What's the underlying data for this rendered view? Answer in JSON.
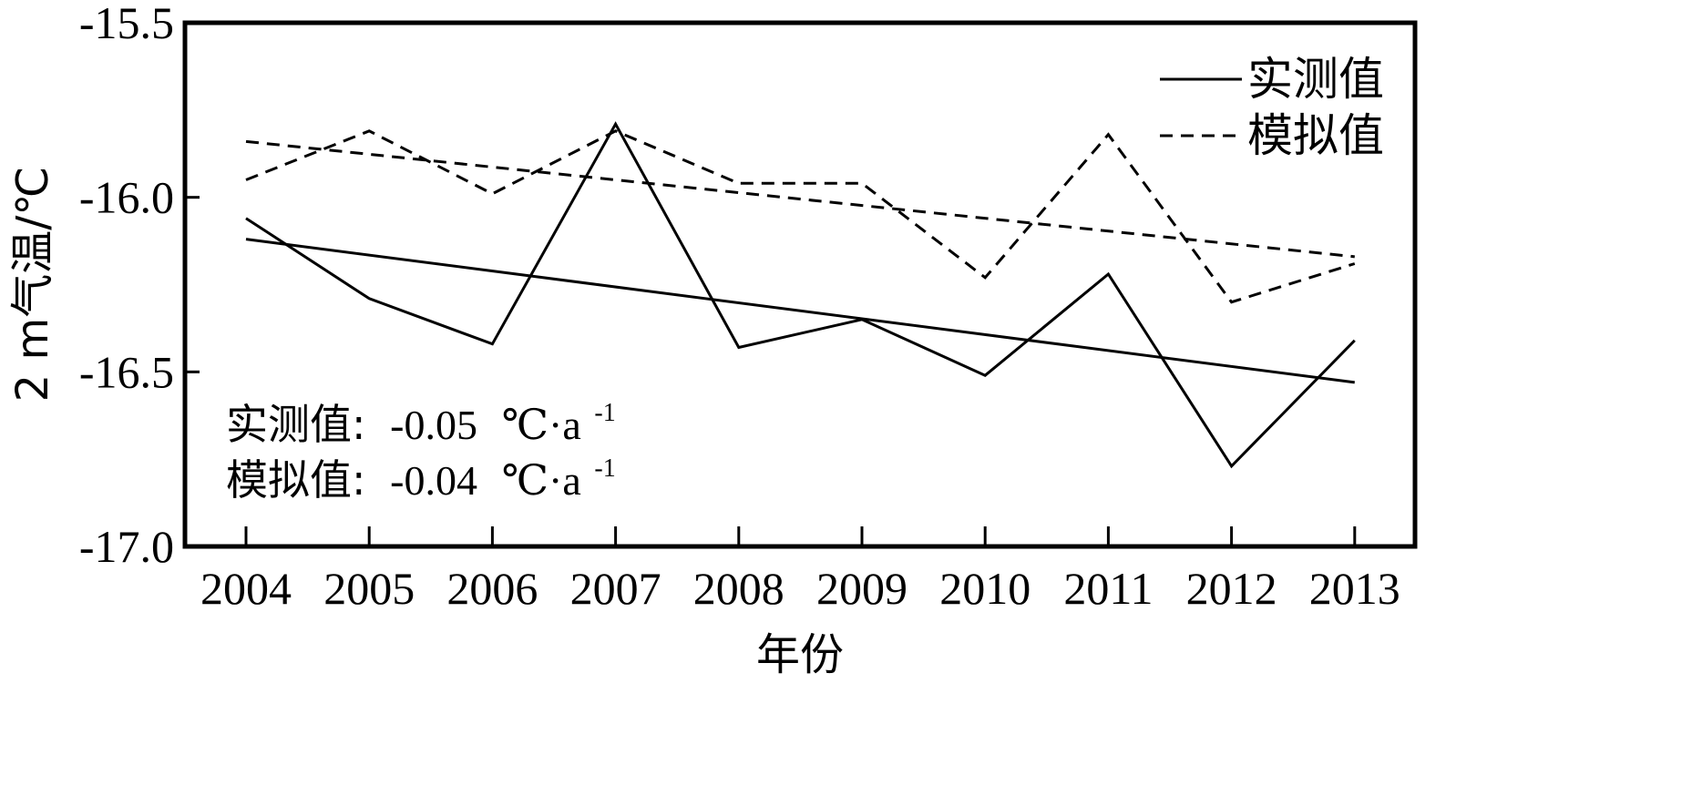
{
  "chart_data": {
    "type": "line",
    "x": [
      "2004",
      "2005",
      "2006",
      "2007",
      "2008",
      "2009",
      "2010",
      "2011",
      "2012",
      "2013"
    ],
    "xlabel": "年份",
    "ylabel": "2 m气温/℃",
    "ylim": [
      -17.0,
      -15.5
    ],
    "yticks": [
      "-17.0",
      "-16.5",
      "-16.0",
      "-15.5"
    ],
    "ytick_values": [
      -17.0,
      -16.5,
      -16.0,
      -15.5
    ],
    "grid": false,
    "legend_position": "top-right",
    "series": [
      {
        "name": "实测值",
        "style": "solid",
        "values": [
          -16.06,
          -16.29,
          -16.42,
          -15.79,
          -16.43,
          -16.35,
          -16.51,
          -16.22,
          -16.77,
          -16.41
        ],
        "trend": [
          -16.12,
          -16.53
        ]
      },
      {
        "name": "模拟值",
        "style": "dashed",
        "values": [
          -15.95,
          -15.81,
          -15.99,
          -15.81,
          -15.96,
          -15.96,
          -16.23,
          -15.82,
          -16.3,
          -16.19
        ],
        "trend": [
          -15.84,
          -16.17
        ]
      }
    ],
    "annotations": [
      {
        "label": "实测值:",
        "value": "-0.05",
        "unit": "℃·a",
        "sup": "-1"
      },
      {
        "label": "模拟值:",
        "value": "-0.04",
        "unit": "℃·a",
        "sup": "-1"
      }
    ]
  }
}
